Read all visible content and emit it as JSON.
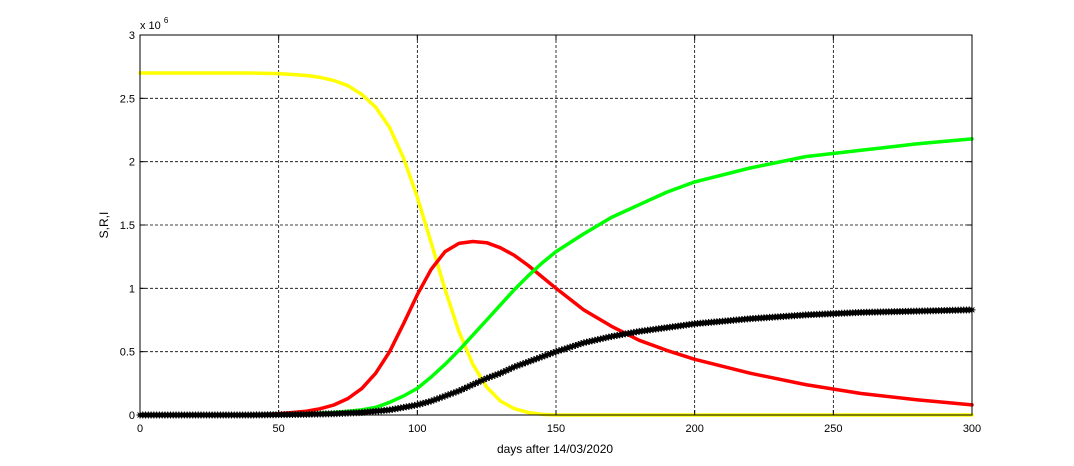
{
  "chart_data": {
    "type": "line",
    "title": "",
    "xlabel": "days after 14/03/2020",
    "ylabel": "S,R,I",
    "y_multiplier_label": "x 10",
    "y_multiplier_exponent": "6",
    "xlim": [
      0,
      300
    ],
    "ylim": [
      0,
      3
    ],
    "x_ticks": [
      0,
      50,
      100,
      150,
      200,
      250,
      300
    ],
    "x_tick_labels": [
      "0",
      "50",
      "100",
      "150",
      "200",
      "250",
      "300"
    ],
    "y_ticks": [
      0,
      0.5,
      1,
      1.5,
      2,
      2.5,
      3
    ],
    "y_tick_labels": [
      "0",
      "0.5",
      "1",
      "1.5",
      "2",
      "2.5",
      "3"
    ],
    "grid": true,
    "grid_style": "dashed",
    "legend": "none",
    "series": [
      {
        "color": "#ffff00",
        "marker": "none",
        "x": [
          0,
          20,
          40,
          50,
          55,
          60,
          65,
          70,
          75,
          80,
          85,
          90,
          95,
          100,
          105,
          110,
          115,
          120,
          125,
          130,
          135,
          140,
          145,
          150,
          160,
          200,
          250,
          300
        ],
        "y": [
          2.7,
          2.7,
          2.7,
          2.695,
          2.688,
          2.68,
          2.665,
          2.64,
          2.6,
          2.53,
          2.43,
          2.27,
          2.03,
          1.72,
          1.36,
          0.99,
          0.66,
          0.4,
          0.22,
          0.11,
          0.05,
          0.02,
          0.005,
          0,
          0,
          0,
          0,
          0
        ]
      },
      {
        "color": "#ff0000",
        "marker": "none",
        "x": [
          0,
          40,
          50,
          55,
          60,
          65,
          70,
          75,
          80,
          85,
          90,
          95,
          100,
          105,
          110,
          115,
          120,
          125,
          130,
          135,
          140,
          145,
          150,
          160,
          170,
          180,
          190,
          200,
          220,
          240,
          260,
          280,
          300
        ],
        "y": [
          0,
          0,
          0.01,
          0.02,
          0.03,
          0.05,
          0.08,
          0.13,
          0.21,
          0.33,
          0.5,
          0.72,
          0.95,
          1.15,
          1.29,
          1.355,
          1.37,
          1.36,
          1.32,
          1.26,
          1.18,
          1.09,
          1.0,
          0.83,
          0.7,
          0.59,
          0.51,
          0.44,
          0.33,
          0.24,
          0.17,
          0.12,
          0.08
        ]
      },
      {
        "color": "#00ff00",
        "marker": "none",
        "x": [
          0,
          40,
          50,
          60,
          70,
          75,
          80,
          85,
          90,
          95,
          100,
          105,
          110,
          115,
          120,
          125,
          130,
          135,
          140,
          145,
          150,
          160,
          170,
          180,
          190,
          200,
          220,
          240,
          260,
          280,
          300
        ],
        "y": [
          0,
          0,
          0.005,
          0.01,
          0.02,
          0.03,
          0.04,
          0.06,
          0.1,
          0.15,
          0.21,
          0.3,
          0.4,
          0.51,
          0.63,
          0.75,
          0.87,
          0.99,
          1.1,
          1.2,
          1.29,
          1.43,
          1.56,
          1.66,
          1.76,
          1.84,
          1.95,
          2.04,
          2.09,
          2.14,
          2.18
        ]
      },
      {
        "color": "#000000",
        "marker": "star",
        "x": [
          0,
          40,
          60,
          70,
          80,
          85,
          90,
          95,
          100,
          105,
          110,
          115,
          120,
          125,
          130,
          135,
          140,
          145,
          150,
          160,
          170,
          180,
          190,
          200,
          220,
          240,
          260,
          280,
          300
        ],
        "y": [
          0,
          0,
          0.005,
          0.01,
          0.02,
          0.03,
          0.04,
          0.06,
          0.08,
          0.11,
          0.15,
          0.19,
          0.24,
          0.29,
          0.33,
          0.38,
          0.42,
          0.46,
          0.5,
          0.57,
          0.62,
          0.66,
          0.69,
          0.72,
          0.76,
          0.79,
          0.81,
          0.82,
          0.83
        ]
      }
    ]
  }
}
